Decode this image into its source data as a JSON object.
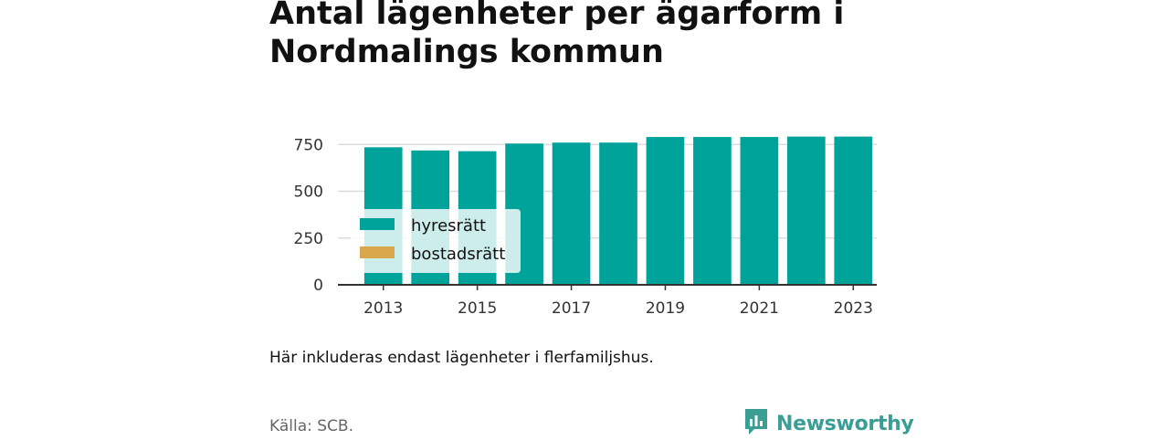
{
  "header": {
    "title": "Antal lägenheter per ägarform i Nordmalings kommun"
  },
  "note": "Här inkluderas endast lägenheter i flerfamiljshus.",
  "source": "Källa: SCB.",
  "brand": {
    "name": "Newsworthy",
    "icon": "newsworthy-logo-icon",
    "color": "#3a9e95"
  },
  "chart_data": {
    "type": "bar",
    "stacked": true,
    "categories": [
      "2013",
      "2014",
      "2015",
      "2016",
      "2017",
      "2018",
      "2019",
      "2020",
      "2021",
      "2022",
      "2023"
    ],
    "x_tick_labels": [
      "2013",
      "2015",
      "2017",
      "2019",
      "2021",
      "2023"
    ],
    "series": [
      {
        "name": "hyresrätt",
        "color": "#00a39a",
        "values": [
          735,
          718,
          714,
          755,
          760,
          760,
          790,
          790,
          790,
          792,
          792
        ]
      },
      {
        "name": "bostadsrätt",
        "color": "#d9a84e",
        "values": [
          0,
          0,
          0,
          0,
          0,
          0,
          0,
          0,
          0,
          0,
          0
        ]
      }
    ],
    "y_ticks": [
      0,
      250,
      500,
      750
    ],
    "ylim": [
      0,
      800
    ],
    "grid": true,
    "legend": {
      "placement": "bottom-left"
    }
  }
}
